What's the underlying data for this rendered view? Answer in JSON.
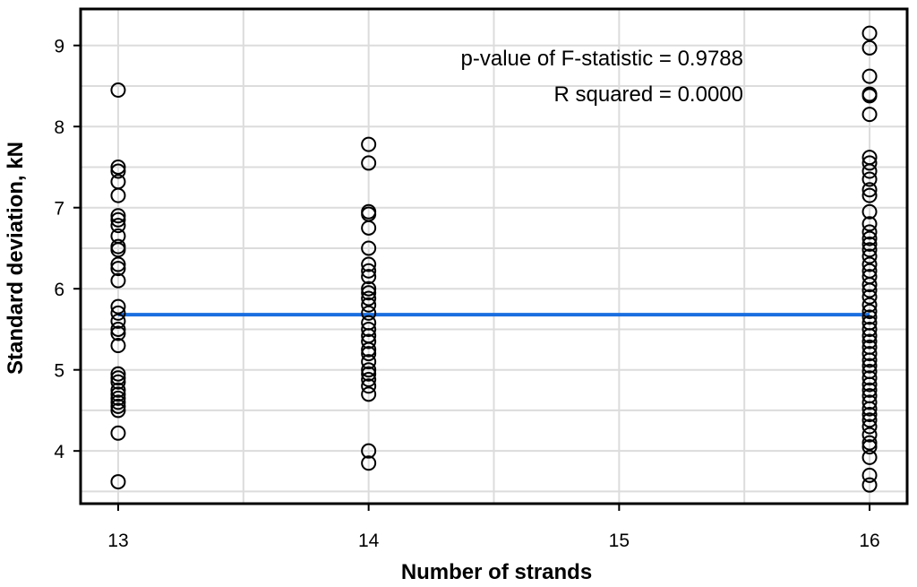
{
  "chart_data": {
    "type": "scatter",
    "xlabel": "Number of strands",
    "ylabel": "Standard deviation, kN",
    "xlim": [
      12.85,
      16.15
    ],
    "ylim": [
      3.35,
      9.45
    ],
    "x_ticks": [
      13,
      14,
      15,
      16
    ],
    "x_tick_labels": [
      "13",
      "14",
      "15",
      "16"
    ],
    "y_ticks": [
      4,
      5,
      6,
      7,
      8,
      9
    ],
    "y_tick_labels": [
      "4",
      "5",
      "6",
      "7",
      "8",
      "9"
    ],
    "x_minor_grid": [
      13.5,
      14.5,
      15.5
    ],
    "y_minor_grid": [
      3.5,
      4.5,
      5.5,
      6.5,
      7.5,
      8.5
    ],
    "grid": true,
    "series": [
      {
        "points": [
          [
            13,
            8.45
          ],
          [
            13,
            7.5
          ],
          [
            13,
            7.45
          ],
          [
            13,
            7.32
          ],
          [
            13,
            7.15
          ],
          [
            13,
            6.9
          ],
          [
            13,
            6.85
          ],
          [
            13,
            6.78
          ],
          [
            13,
            6.65
          ],
          [
            13,
            6.52
          ],
          [
            13,
            6.48
          ],
          [
            13,
            6.3
          ],
          [
            13,
            6.25
          ],
          [
            13,
            6.1
          ],
          [
            13,
            5.78
          ],
          [
            13,
            5.7
          ],
          [
            13,
            5.6
          ],
          [
            13,
            5.5
          ],
          [
            13,
            5.45
          ],
          [
            13,
            5.3
          ],
          [
            13,
            4.95
          ],
          [
            13,
            4.9
          ],
          [
            13,
            4.85
          ],
          [
            13,
            4.75
          ],
          [
            13,
            4.7
          ],
          [
            13,
            4.65
          ],
          [
            13,
            4.6
          ],
          [
            13,
            4.55
          ],
          [
            13,
            4.5
          ],
          [
            13,
            4.22
          ],
          [
            13,
            3.62
          ],
          [
            14,
            7.78
          ],
          [
            14,
            7.55
          ],
          [
            14,
            6.95
          ],
          [
            14,
            6.92
          ],
          [
            14,
            6.75
          ],
          [
            14,
            6.5
          ],
          [
            14,
            6.3
          ],
          [
            14,
            6.22
          ],
          [
            14,
            6.15
          ],
          [
            14,
            6.0
          ],
          [
            14,
            5.95
          ],
          [
            14,
            5.88
          ],
          [
            14,
            5.8
          ],
          [
            14,
            5.7
          ],
          [
            14,
            5.58
          ],
          [
            14,
            5.5
          ],
          [
            14,
            5.42
          ],
          [
            14,
            5.35
          ],
          [
            14,
            5.25
          ],
          [
            14,
            5.2
          ],
          [
            14,
            5.1
          ],
          [
            14,
            5.0
          ],
          [
            14,
            4.95
          ],
          [
            14,
            4.88
          ],
          [
            14,
            4.8
          ],
          [
            14,
            4.7
          ],
          [
            14,
            4.0
          ],
          [
            14,
            3.85
          ],
          [
            16,
            9.15
          ],
          [
            16,
            8.97
          ],
          [
            16,
            8.62
          ],
          [
            16,
            8.4
          ],
          [
            16,
            8.38
          ],
          [
            16,
            8.15
          ],
          [
            16,
            7.62
          ],
          [
            16,
            7.55
          ],
          [
            16,
            7.45
          ],
          [
            16,
            7.35
          ],
          [
            16,
            7.22
          ],
          [
            16,
            7.15
          ],
          [
            16,
            6.95
          ],
          [
            16,
            6.8
          ],
          [
            16,
            6.7
          ],
          [
            16,
            6.62
          ],
          [
            16,
            6.55
          ],
          [
            16,
            6.48
          ],
          [
            16,
            6.4
          ],
          [
            16,
            6.3
          ],
          [
            16,
            6.22
          ],
          [
            16,
            6.15
          ],
          [
            16,
            6.05
          ],
          [
            16,
            5.98
          ],
          [
            16,
            5.9
          ],
          [
            16,
            5.8
          ],
          [
            16,
            5.72
          ],
          [
            16,
            5.65
          ],
          [
            16,
            5.58
          ],
          [
            16,
            5.5
          ],
          [
            16,
            5.42
          ],
          [
            16,
            5.35
          ],
          [
            16,
            5.28
          ],
          [
            16,
            5.2
          ],
          [
            16,
            5.12
          ],
          [
            16,
            5.05
          ],
          [
            16,
            4.98
          ],
          [
            16,
            4.9
          ],
          [
            16,
            4.82
          ],
          [
            16,
            4.75
          ],
          [
            16,
            4.68
          ],
          [
            16,
            4.6
          ],
          [
            16,
            4.52
          ],
          [
            16,
            4.45
          ],
          [
            16,
            4.38
          ],
          [
            16,
            4.3
          ],
          [
            16,
            4.2
          ],
          [
            16,
            4.1
          ],
          [
            16,
            4.05
          ],
          [
            16,
            3.92
          ],
          [
            16,
            3.7
          ],
          [
            16,
            3.58
          ]
        ]
      }
    ],
    "fit_line": {
      "x": [
        13,
        16
      ],
      "y": [
        5.68,
        5.68
      ],
      "color": "#1a6ee0"
    },
    "annotations": [
      "p-value of F-statistic = 0.9788",
      "R squared = 0.0000"
    ],
    "colors": {
      "background": "#ffffff",
      "grid": "#dcdcdc",
      "points": "#000000",
      "fit": "#1a6ee0"
    }
  }
}
